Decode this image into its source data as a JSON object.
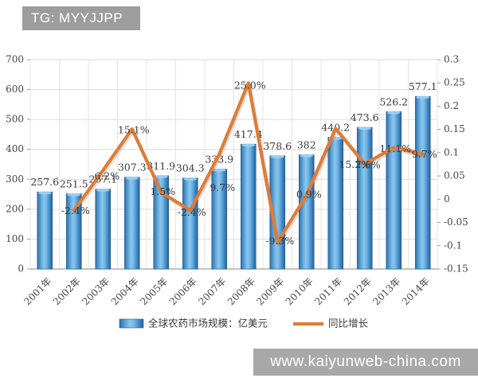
{
  "badge": {
    "text": "TG: MYYJJPP"
  },
  "watermark": {
    "text": "www.kaiyunweb-china.com"
  },
  "chart_data": {
    "type": "bar",
    "title": "",
    "categories": [
      "2001年",
      "2002年",
      "2003年",
      "2004年",
      "2005年",
      "2006年",
      "2007年",
      "2008年",
      "2009年",
      "2010年",
      "2011年",
      "2012年",
      "2013年",
      "2014年"
    ],
    "series": [
      {
        "name": "全球农药市场规模：亿美元",
        "type": "bar",
        "axis": "left",
        "values": [
          257.6,
          251.5,
          267.1,
          307.3,
          311.9,
          304.3,
          333.9,
          417.4,
          378.6,
          382,
          440.2,
          473.6,
          526.2,
          577.1
        ],
        "value_labels": [
          "257.6",
          "251.5",
          "267.1",
          "307.3",
          "311.9",
          "304.3",
          "333.9",
          "417.4",
          "378.6",
          "382",
          "440.2",
          "473.6",
          "526.2",
          "577.1"
        ]
      },
      {
        "name": "同比增长",
        "type": "line",
        "axis": "right",
        "values": [
          null,
          -0.024,
          0.062,
          0.151,
          0.015,
          -0.024,
          0.097,
          0.25,
          -0.093,
          0.009,
          0.152,
          0.076,
          0.111,
          0.097
        ],
        "value_labels": [
          null,
          "-2.4%",
          "6.2%",
          "15.1%",
          "1.5%",
          "-2.4%",
          "9.7%",
          "25.0%",
          "-9.3%",
          "0.9%",
          "15.2%",
          "7.6%",
          "11.1%",
          "9.7%"
        ]
      }
    ],
    "left_axis": {
      "min": 0,
      "max": 700,
      "tick_labels": [
        "0",
        "100",
        "200",
        "300",
        "400",
        "500",
        "600",
        "700"
      ]
    },
    "right_axis": {
      "min": -0.15,
      "max": 0.3,
      "tick_labels": [
        "-0.15",
        "-0.1",
        "-0.05",
        "0",
        "0.05",
        "0.1",
        "0.15",
        "0.2",
        "0.25",
        "0.3"
      ]
    },
    "legend_position": "bottom",
    "grid": true,
    "colors": {
      "bar": "#3f87c5",
      "bar_edge": "#2a6094",
      "bar_highlight": "#8cc6ec",
      "line": "#dd7c39",
      "label_text": "#3b3b3b",
      "grid": "#dcdcdc",
      "axis": "#a0a0a0"
    }
  }
}
